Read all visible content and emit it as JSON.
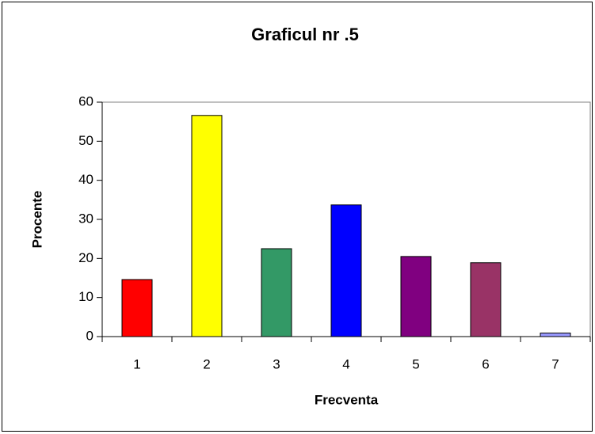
{
  "chart_data": {
    "type": "bar",
    "title": "Graficul nr .5",
    "xlabel": "Frecventa",
    "ylabel": "Procente",
    "categories": [
      "1",
      "2",
      "3",
      "4",
      "5",
      "6",
      "7"
    ],
    "values": [
      14.6,
      56.6,
      22.5,
      33.7,
      20.5,
      18.9,
      0.9
    ],
    "colors": [
      "#ff0000",
      "#ffff00",
      "#339966",
      "#0000ff",
      "#800080",
      "#993366",
      "#9999ff"
    ],
    "ylim": [
      0,
      60
    ],
    "yticks": [
      0,
      10,
      20,
      30,
      40,
      50,
      60
    ]
  }
}
